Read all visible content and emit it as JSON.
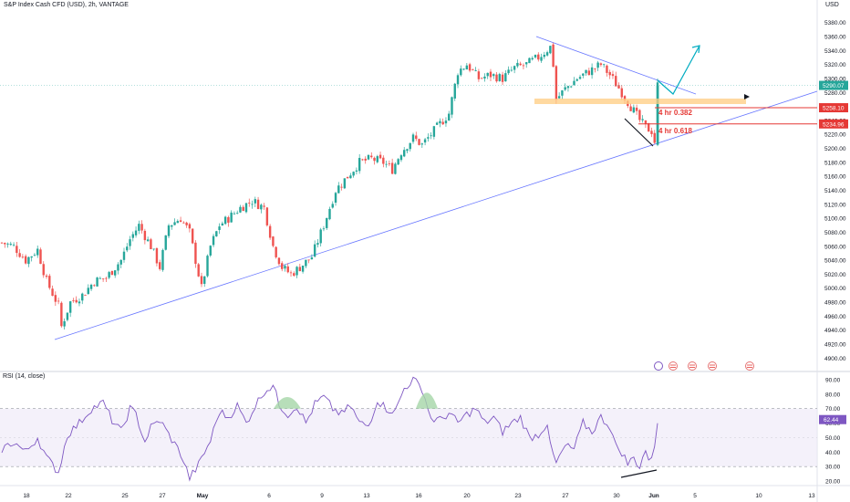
{
  "header": {
    "title": "S&P Index Cash CFD (USD), 2h, VANTAGE",
    "currency": "USD"
  },
  "colors": {
    "up": "#26a69a",
    "down": "#ef5350",
    "trendline": "#6776ff",
    "rsi_line": "#7e57c2",
    "rsi_band": "#ede7f6",
    "fib_line": "#e53935",
    "zone": "#ffcc80",
    "projection": "#00acc1"
  },
  "price_axis": {
    "min": 4890,
    "max": 5390,
    "ticks": [
      "5380.00",
      "5360.00",
      "5340.00",
      "5320.00",
      "5300.00",
      "5280.00",
      "5260.00",
      "5240.00",
      "5220.00",
      "5200.00",
      "5180.00",
      "5160.00",
      "5140.00",
      "5120.00",
      "5100.00",
      "5080.00",
      "5060.00",
      "5040.00",
      "5020.00",
      "5000.00",
      "4980.00",
      "4960.00",
      "4940.00",
      "4920.00",
      "4900.00"
    ]
  },
  "price_labels": {
    "current": "5290.07",
    "fib_382_price": "5258.10",
    "fib_618_price": "5234.96"
  },
  "annotations": {
    "fib_382": "4 hr 0.382",
    "fib_618": "4 hr 0.618"
  },
  "rsi": {
    "title": "RSI (14, close)",
    "value": "62.44",
    "ticks": [
      "90.00",
      "80.00",
      "70.00",
      "60.00",
      "50.00",
      "40.00",
      "30.00",
      "20.00"
    ],
    "upper": 70,
    "lower": 30
  },
  "time_axis": {
    "labels": [
      "18",
      "22",
      "25",
      "27",
      "May",
      "6",
      "9",
      "13",
      "16",
      "20",
      "23",
      "27",
      "30",
      "Jun",
      "5",
      "10",
      "13"
    ]
  },
  "chart_data": {
    "type": "candlestick",
    "series_anchors_close": [
      [
        0,
        5065
      ],
      [
        4,
        5060
      ],
      [
        8,
        5040
      ],
      [
        12,
        5055
      ],
      [
        15,
        5010
      ],
      [
        19,
        4975
      ],
      [
        20,
        4945
      ],
      [
        23,
        4980
      ],
      [
        27,
        4990
      ],
      [
        31,
        5010
      ],
      [
        35,
        5015
      ],
      [
        40,
        5040
      ],
      [
        43,
        5070
      ],
      [
        46,
        5090
      ],
      [
        50,
        5060
      ],
      [
        53,
        5030
      ],
      [
        56,
        5090
      ],
      [
        60,
        5100
      ],
      [
        63,
        5080
      ],
      [
        65,
        5040
      ],
      [
        67,
        5000
      ],
      [
        70,
        5060
      ],
      [
        73,
        5090
      ],
      [
        76,
        5100
      ],
      [
        80,
        5115
      ],
      [
        84,
        5125
      ],
      [
        88,
        5115
      ],
      [
        91,
        5060
      ],
      [
        94,
        5030
      ],
      [
        97,
        5020
      ],
      [
        100,
        5030
      ],
      [
        104,
        5045
      ],
      [
        108,
        5090
      ],
      [
        112,
        5140
      ],
      [
        116,
        5160
      ],
      [
        120,
        5180
      ],
      [
        124,
        5185
      ],
      [
        128,
        5180
      ],
      [
        131,
        5170
      ],
      [
        134,
        5195
      ],
      [
        138,
        5215
      ],
      [
        141,
        5205
      ],
      [
        144,
        5220
      ],
      [
        147,
        5235
      ],
      [
        150,
        5250
      ],
      [
        153,
        5310
      ],
      [
        156,
        5320
      ],
      [
        160,
        5300
      ],
      [
        164,
        5305
      ],
      [
        168,
        5300
      ],
      [
        172,
        5315
      ],
      [
        176,
        5320
      ],
      [
        180,
        5330
      ],
      [
        184,
        5345
      ],
      [
        185,
        5320
      ],
      [
        186,
        5270
      ],
      [
        189,
        5285
      ],
      [
        193,
        5300
      ],
      [
        197,
        5310
      ],
      [
        201,
        5320
      ],
      [
        204,
        5305
      ],
      [
        208,
        5280
      ],
      [
        211,
        5260
      ],
      [
        214,
        5240
      ],
      [
        216,
        5230
      ],
      [
        218,
        5225
      ],
      [
        219,
        5210
      ],
      [
        220,
        5290
      ]
    ],
    "rsi_anchors": [
      [
        0,
        42
      ],
      [
        4,
        47
      ],
      [
        8,
        40
      ],
      [
        12,
        50
      ],
      [
        15,
        36
      ],
      [
        19,
        26
      ],
      [
        22,
        52
      ],
      [
        26,
        60
      ],
      [
        30,
        70
      ],
      [
        34,
        74
      ],
      [
        37,
        62
      ],
      [
        40,
        54
      ],
      [
        43,
        70
      ],
      [
        45,
        66
      ],
      [
        48,
        47
      ],
      [
        50,
        57
      ],
      [
        53,
        62
      ],
      [
        56,
        52
      ],
      [
        60,
        39
      ],
      [
        63,
        22
      ],
      [
        66,
        31
      ],
      [
        70,
        48
      ],
      [
        73,
        68
      ],
      [
        76,
        64
      ],
      [
        79,
        72
      ],
      [
        82,
        60
      ],
      [
        85,
        72
      ],
      [
        88,
        82
      ],
      [
        91,
        86
      ],
      [
        93,
        73
      ],
      [
        96,
        66
      ],
      [
        99,
        72
      ],
      [
        102,
        60
      ],
      [
        105,
        73
      ],
      [
        108,
        78
      ],
      [
        111,
        70
      ],
      [
        114,
        66
      ],
      [
        117,
        72
      ],
      [
        120,
        60
      ],
      [
        123,
        58
      ],
      [
        126,
        76
      ],
      [
        129,
        70
      ],
      [
        132,
        68
      ],
      [
        135,
        84
      ],
      [
        138,
        90
      ],
      [
        141,
        84
      ],
      [
        144,
        63
      ],
      [
        147,
        62
      ],
      [
        150,
        67
      ],
      [
        153,
        60
      ],
      [
        156,
        66
      ],
      [
        159,
        70
      ],
      [
        162,
        60
      ],
      [
        165,
        64
      ],
      [
        168,
        54
      ],
      [
        171,
        60
      ],
      [
        174,
        64
      ],
      [
        177,
        50
      ],
      [
        180,
        52
      ],
      [
        183,
        60
      ],
      [
        184,
        44
      ],
      [
        186,
        32
      ],
      [
        189,
        44
      ],
      [
        192,
        42
      ],
      [
        195,
        60
      ],
      [
        198,
        54
      ],
      [
        201,
        64
      ],
      [
        204,
        58
      ],
      [
        206,
        44
      ],
      [
        208,
        40
      ],
      [
        210,
        32
      ],
      [
        212,
        36
      ],
      [
        214,
        30
      ],
      [
        216,
        42
      ],
      [
        217,
        32
      ],
      [
        218,
        38
      ],
      [
        219,
        45
      ],
      [
        220,
        62
      ]
    ],
    "bars": 221
  }
}
